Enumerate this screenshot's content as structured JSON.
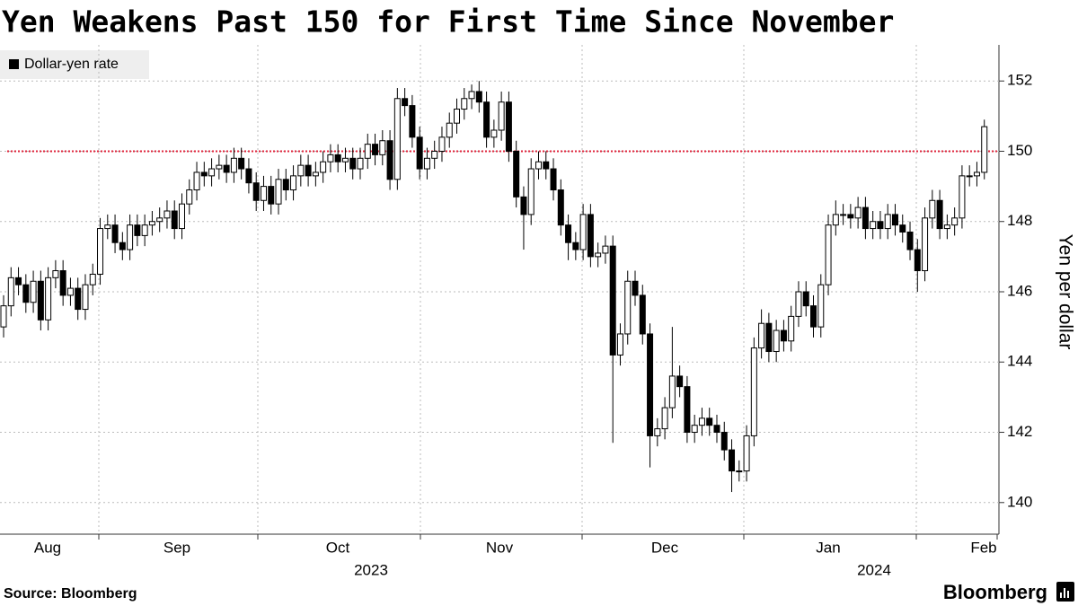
{
  "chart_data": {
    "type": "candlestick",
    "title": "Yen Weakens Past 150 for First Time Since November",
    "y_label": "Yen per dollar",
    "source": "Source: Bloomberg",
    "brand": "Bloomberg",
    "x_labels": [
      "Aug",
      "Sep",
      "Oct",
      "Nov",
      "Dec",
      "Jan",
      "Feb"
    ],
    "year_labels": [
      "2023",
      "2024"
    ],
    "reference_line": 150,
    "reference_color": "#e0263c",
    "ylim": [
      139.1,
      152.9
    ],
    "yticks": [
      140,
      142,
      144,
      146,
      148,
      150,
      152
    ],
    "grid": true,
    "categories": [
      null,
      null,
      null,
      null,
      null,
      null,
      null,
      null,
      null,
      null,
      null,
      null,
      null,
      null,
      null,
      null,
      null,
      null,
      null,
      null,
      null,
      null,
      null,
      null,
      null,
      null,
      null,
      null,
      null,
      null,
      null,
      null,
      null,
      null,
      null,
      null,
      null,
      null,
      null,
      null,
      null,
      null,
      null,
      null,
      null,
      null,
      null,
      null,
      null,
      null,
      null,
      null,
      null,
      null,
      null,
      null,
      null,
      null,
      null,
      null,
      null,
      null,
      null,
      null,
      null,
      null,
      null,
      null,
      null,
      null,
      null,
      null,
      null,
      null,
      null,
      null,
      null,
      null,
      null,
      null,
      null,
      null,
      null,
      null,
      null,
      null,
      null,
      null,
      null,
      null,
      null,
      null,
      null,
      null,
      null,
      null,
      null,
      null,
      null,
      null,
      null,
      null,
      null,
      null,
      null,
      null,
      null,
      null,
      null,
      null,
      null,
      null,
      null,
      null,
      null,
      null,
      null,
      null,
      null,
      null,
      null,
      null,
      null,
      null,
      null,
      null,
      null,
      null,
      null,
      null,
      null,
      null,
      null
    ],
    "series": [
      {
        "name": "Dollar-yen rate",
        "color": "#000000",
        "up_color": "#ffffff",
        "open": [
          145.0,
          145.6,
          146.4,
          146.2,
          145.7,
          146.3,
          145.2,
          146.4,
          146.6,
          145.9,
          146.1,
          145.5,
          146.2,
          146.5,
          147.8,
          147.9,
          147.4,
          147.2,
          147.9,
          147.6,
          147.9,
          148.0,
          148.1,
          148.3,
          147.8,
          148.5,
          148.9,
          149.4,
          149.3,
          149.5,
          149.6,
          149.4,
          149.8,
          149.5,
          149.1,
          148.6,
          149.0,
          148.5,
          149.2,
          148.9,
          149.3,
          149.6,
          149.3,
          149.4,
          149.7,
          149.9,
          149.7,
          149.8,
          149.5,
          149.8,
          150.2,
          149.9,
          150.3,
          149.2,
          151.5,
          151.3,
          150.4,
          149.5,
          149.8,
          150.0,
          150.4,
          150.8,
          151.2,
          151.5,
          151.7,
          151.4,
          150.4,
          150.6,
          151.4,
          150.0,
          148.7,
          148.2,
          149.5,
          149.7,
          149.5,
          148.9,
          147.9,
          147.4,
          147.2,
          148.2,
          147.0,
          147.1,
          147.3,
          144.2,
          144.8,
          146.3,
          145.9,
          144.8,
          141.9,
          142.1,
          142.7,
          143.6,
          143.3,
          142.0,
          142.2,
          142.4,
          142.2,
          142.0,
          141.5,
          140.9,
          140.9,
          141.9,
          144.4,
          145.1,
          144.3,
          144.9,
          144.6,
          145.3,
          146.0,
          145.6,
          145.0,
          146.2,
          147.9,
          148.2,
          148.2,
          148.1,
          148.4,
          147.8,
          148.0,
          147.8,
          148.2,
          147.9,
          147.7,
          147.2,
          146.6,
          148.1,
          148.6,
          147.8,
          147.9,
          148.1,
          149.3,
          149.3,
          149.4
        ],
        "high": [
          145.9,
          146.7,
          146.7,
          146.5,
          146.6,
          146.6,
          146.7,
          146.9,
          146.9,
          146.4,
          146.4,
          146.5,
          146.8,
          148.1,
          148.2,
          148.2,
          147.7,
          148.2,
          148.2,
          148.2,
          148.3,
          148.4,
          148.6,
          148.6,
          148.8,
          149.2,
          149.7,
          149.7,
          149.8,
          149.9,
          149.9,
          150.1,
          150.1,
          149.8,
          149.4,
          149.3,
          149.3,
          149.5,
          149.5,
          149.6,
          149.9,
          149.9,
          149.7,
          150.0,
          150.2,
          150.2,
          150.1,
          150.1,
          150.1,
          150.5,
          150.5,
          150.6,
          150.6,
          151.8,
          151.8,
          151.6,
          150.7,
          150.1,
          150.3,
          150.7,
          151.1,
          151.5,
          151.8,
          151.9,
          152.0,
          151.7,
          150.9,
          151.7,
          151.7,
          150.3,
          149.0,
          149.8,
          150.0,
          150.0,
          149.8,
          149.2,
          148.2,
          147.7,
          148.5,
          148.5,
          147.4,
          147.6,
          147.6,
          145.1,
          146.6,
          146.6,
          146.2,
          145.1,
          142.4,
          143.0,
          145.0,
          143.9,
          143.6,
          142.5,
          142.7,
          142.7,
          142.5,
          142.3,
          141.8,
          141.2,
          142.2,
          144.7,
          145.5,
          145.4,
          145.2,
          145.2,
          145.6,
          146.3,
          146.3,
          145.9,
          146.5,
          148.2,
          148.6,
          148.5,
          148.5,
          148.7,
          148.7,
          148.3,
          148.3,
          148.5,
          148.5,
          148.2,
          148.0,
          147.5,
          148.4,
          148.9,
          148.9,
          148.2,
          148.4,
          149.6,
          149.6,
          149.7,
          150.9
        ],
        "low": [
          144.7,
          145.3,
          145.9,
          145.4,
          145.4,
          144.9,
          144.9,
          146.1,
          145.6,
          145.6,
          145.2,
          145.2,
          145.9,
          146.2,
          147.5,
          147.1,
          146.9,
          146.9,
          147.3,
          147.3,
          147.6,
          147.7,
          147.8,
          147.5,
          147.5,
          148.2,
          148.6,
          149.0,
          149.0,
          149.2,
          149.1,
          149.1,
          149.2,
          148.8,
          148.3,
          148.3,
          148.2,
          148.2,
          148.6,
          148.6,
          149.0,
          149.0,
          149.0,
          149.1,
          149.4,
          149.4,
          149.4,
          149.2,
          149.2,
          149.5,
          149.6,
          149.6,
          148.9,
          148.9,
          151.0,
          150.1,
          149.2,
          149.2,
          149.5,
          149.7,
          150.1,
          150.5,
          150.9,
          151.2,
          151.1,
          150.1,
          150.1,
          150.3,
          149.7,
          148.4,
          147.2,
          147.9,
          149.2,
          149.2,
          148.6,
          147.6,
          146.9,
          146.9,
          146.9,
          146.7,
          146.7,
          146.8,
          141.7,
          143.9,
          144.5,
          145.6,
          144.5,
          141.0,
          141.6,
          141.8,
          142.4,
          143.0,
          141.7,
          141.7,
          141.9,
          141.9,
          141.7,
          141.2,
          140.3,
          140.6,
          140.6,
          141.6,
          144.1,
          144.0,
          144.0,
          144.3,
          144.3,
          145.0,
          145.3,
          144.7,
          144.7,
          145.9,
          147.6,
          147.9,
          147.8,
          147.8,
          147.5,
          147.5,
          147.5,
          147.5,
          147.6,
          147.4,
          146.9,
          146.0,
          146.3,
          147.8,
          147.5,
          147.5,
          147.6,
          147.8,
          149.0,
          149.0,
          149.2
        ],
        "close": [
          145.6,
          146.4,
          146.2,
          145.7,
          146.3,
          145.2,
          146.4,
          146.6,
          145.9,
          146.1,
          145.5,
          146.2,
          146.5,
          147.8,
          147.9,
          147.4,
          147.2,
          147.9,
          147.6,
          147.9,
          148.0,
          148.1,
          148.3,
          147.8,
          148.5,
          148.9,
          149.4,
          149.3,
          149.5,
          149.6,
          149.4,
          149.8,
          149.5,
          149.1,
          148.6,
          149.0,
          148.5,
          149.2,
          148.9,
          149.3,
          149.6,
          149.3,
          149.4,
          149.7,
          149.9,
          149.7,
          149.8,
          149.5,
          149.8,
          150.2,
          149.9,
          150.3,
          149.2,
          151.5,
          151.3,
          150.4,
          149.5,
          149.8,
          150.0,
          150.4,
          150.8,
          151.2,
          151.5,
          151.7,
          151.4,
          150.4,
          150.6,
          151.4,
          150.0,
          148.7,
          148.2,
          149.5,
          149.7,
          149.5,
          148.9,
          147.9,
          147.4,
          147.2,
          148.2,
          147.0,
          147.1,
          147.3,
          144.2,
          144.8,
          146.3,
          145.9,
          144.8,
          141.9,
          142.1,
          142.7,
          143.6,
          143.3,
          142.0,
          142.2,
          142.4,
          142.2,
          142.0,
          141.5,
          140.9,
          140.9,
          141.9,
          144.4,
          145.1,
          144.3,
          144.9,
          144.6,
          145.3,
          146.0,
          145.6,
          145.0,
          146.2,
          147.9,
          148.2,
          148.2,
          148.1,
          148.4,
          147.8,
          148.0,
          147.8,
          148.2,
          147.9,
          147.7,
          147.2,
          146.6,
          148.1,
          148.6,
          147.8,
          147.9,
          148.1,
          149.3,
          149.3,
          149.4,
          150.7
        ]
      }
    ]
  }
}
